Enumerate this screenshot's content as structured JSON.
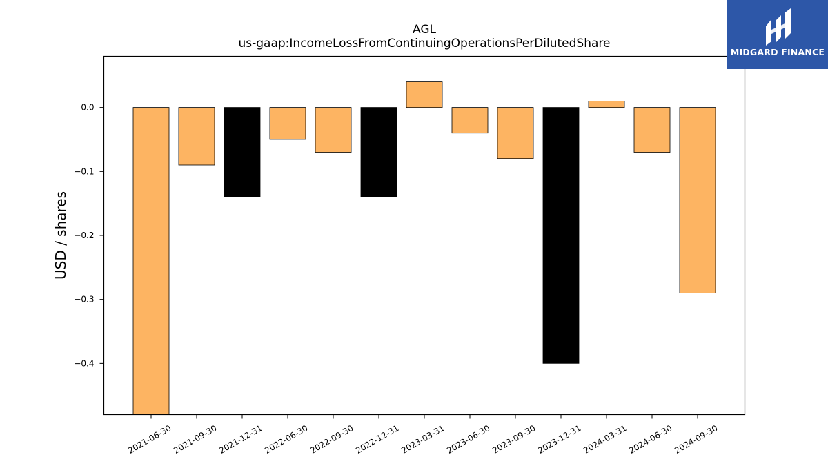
{
  "brand": {
    "name": "MIDGARD FINANCE",
    "bg_color": "#2d57a8",
    "icon": "midgard-logo-icon"
  },
  "chart_data": {
    "type": "bar",
    "title": "AGL",
    "subtitle": "us-gaap:IncomeLossFromContinuingOperationsPerDilutedShare",
    "xlabel": "",
    "ylabel": "USD / shares",
    "ylim": [
      -0.48,
      0.08
    ],
    "yticks": [
      0.0,
      -0.1,
      -0.2,
      -0.3,
      -0.4
    ],
    "ytick_labels": [
      "0.0",
      "−0.1",
      "−0.2",
      "−0.3",
      "−0.4"
    ],
    "grid": false,
    "categories": [
      "2021-06-30",
      "2021-09-30",
      "2021-12-31",
      "2022-06-30",
      "2022-09-30",
      "2022-12-31",
      "2023-03-31",
      "2023-06-30",
      "2023-09-30",
      "2023-12-31",
      "2024-03-31",
      "2024-06-30",
      "2024-09-30"
    ],
    "values": [
      -0.53,
      -0.09,
      -0.14,
      -0.05,
      -0.07,
      -0.14,
      0.04,
      -0.04,
      -0.08,
      -0.4,
      0.01,
      -0.07,
      -0.29
    ],
    "colors": [
      "#fdb462",
      "#fdb462",
      "#000000",
      "#fdb462",
      "#fdb462",
      "#000000",
      "#fdb462",
      "#fdb462",
      "#fdb462",
      "#000000",
      "#fdb462",
      "#fdb462",
      "#fdb462"
    ]
  }
}
